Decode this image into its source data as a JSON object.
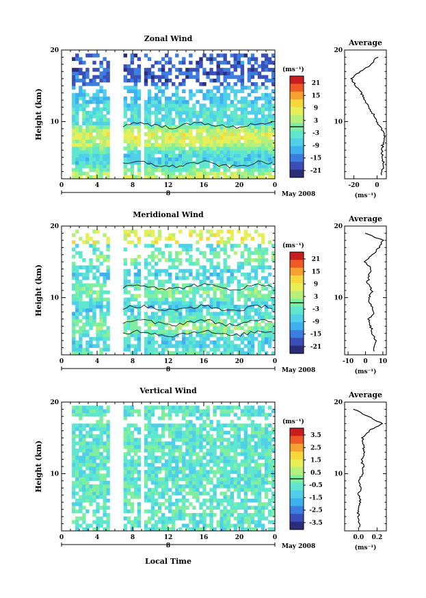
{
  "colors": {
    "scale": [
      "#2b2c7a",
      "#3a4fb8",
      "#3c7ee0",
      "#3fb0ee",
      "#4fd0e8",
      "#5fe6cf",
      "#7fef9f",
      "#b6f07b",
      "#e6ef57",
      "#f6d73c",
      "#f5a130",
      "#ee5a26",
      "#c81e1e"
    ],
    "missing": "#ffffff"
  },
  "common": {
    "ylabel": "Height (km)",
    "xlabel": "Local Time",
    "date_label": "May 2008",
    "day_label": "8",
    "unit": "(ms⁻¹)",
    "x_ticks": [
      "0",
      "4",
      "8",
      "12",
      "16",
      "20",
      "0"
    ],
    "y_ticks": [
      "20",
      "10"
    ],
    "avg_title": "Average"
  },
  "panels": [
    {
      "id": "zonal",
      "title": "Zonal Wind",
      "colorbar_ticks": [
        "21",
        "15",
        "9",
        "3",
        "-3",
        "-9",
        "-15",
        "-21"
      ],
      "avg_xticks": [
        "-20",
        "0"
      ],
      "avg_xunit": "(ms⁻¹)"
    },
    {
      "id": "meridional",
      "title": "Meridional Wind",
      "colorbar_ticks": [
        "21",
        "15",
        "9",
        "3",
        "-3",
        "-9",
        "-15",
        "-21"
      ],
      "avg_xticks": [
        "-10",
        "0",
        "10"
      ],
      "avg_xunit": "(ms⁻¹)"
    },
    {
      "id": "vertical",
      "title": "Vertical Wind",
      "colorbar_ticks": [
        "3.5",
        "2.5",
        "1.5",
        "0.5",
        "-0.5",
        "-1.5",
        "-2.5",
        "-3.5"
      ],
      "avg_xticks": [
        "0.0",
        "0.2"
      ],
      "avg_xunit": "(ms⁻¹)"
    }
  ],
  "chart_data": [
    {
      "type": "heatmap",
      "title": "Zonal Wind",
      "xlabel": "",
      "ylabel": "Height (km)",
      "xlim": [
        0,
        24
      ],
      "ylim": [
        2,
        20
      ],
      "colorbar_range": [
        -24,
        24
      ],
      "heights_km": [
        2.5,
        4,
        5,
        6,
        7,
        8,
        9,
        10,
        11,
        12,
        13,
        14,
        15,
        16,
        17,
        18,
        19
      ],
      "mean_profile_ms": [
        3,
        6,
        5,
        4,
        5,
        6,
        4,
        0,
        -3,
        -8,
        -10,
        -14,
        -18,
        -22,
        -15,
        -5,
        0
      ]
    },
    {
      "type": "heatmap",
      "title": "Meridional Wind",
      "xlabel": "",
      "ylabel": "Height (km)",
      "xlim": [
        0,
        24
      ],
      "ylim": [
        2,
        20
      ],
      "colorbar_range": [
        -24,
        24
      ],
      "heights_km": [
        2.5,
        4,
        5,
        6,
        7,
        8,
        9,
        10,
        11,
        12,
        13,
        14,
        15,
        16,
        17,
        18,
        19
      ],
      "mean_profile_ms": [
        5,
        6,
        4,
        3,
        2,
        5,
        3,
        2,
        4,
        1,
        2,
        3,
        0,
        4,
        8,
        10,
        0
      ]
    },
    {
      "type": "heatmap",
      "title": "Vertical Wind",
      "xlabel": "Local Time",
      "ylabel": "Height (km)",
      "xlim": [
        0,
        24
      ],
      "ylim": [
        2,
        20
      ],
      "colorbar_range": [
        -4,
        4
      ],
      "heights_km": [
        2.5,
        4,
        5,
        6,
        7,
        8,
        9,
        10,
        11,
        12,
        13,
        14,
        15,
        16,
        17,
        18,
        19
      ],
      "mean_profile_ms": [
        0.02,
        0.0,
        -0.01,
        0.02,
        0.0,
        0.03,
        0.01,
        0.04,
        0.05,
        0.03,
        0.07,
        0.05,
        0.04,
        0.12,
        0.25,
        0.1,
        -0.05
      ]
    }
  ]
}
